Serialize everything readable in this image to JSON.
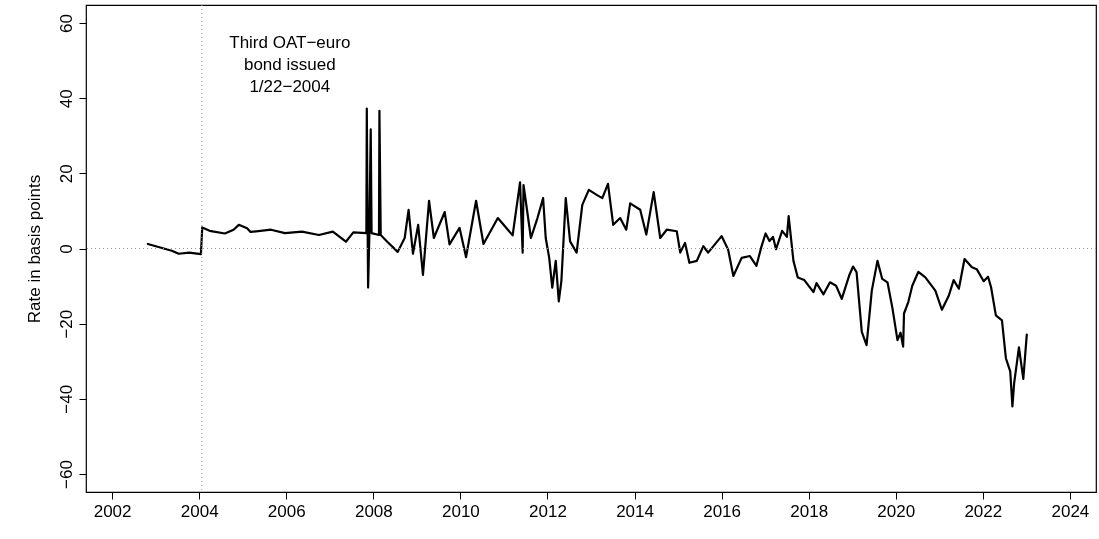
{
  "chart_data": {
    "type": "line",
    "ylabel": "Rate in basis points",
    "xlim": [
      2001.4,
      2024.6
    ],
    "xticks": [
      2002,
      2004,
      2006,
      2008,
      2010,
      2012,
      2014,
      2016,
      2018,
      2020,
      2022,
      2024
    ],
    "ylim": [
      -64.8,
      64.8
    ],
    "yticks": [
      -60,
      -40,
      -20,
      0,
      20,
      40,
      60
    ],
    "grid": false,
    "line_style": "solid",
    "ref_lines": [
      {
        "axis": "x",
        "value": 2004.06,
        "label": "Third OAT−euro\nbond issued\n1/22−2004",
        "color": "#999999",
        "line_style": "dotted"
      },
      {
        "axis": "y",
        "value": 0,
        "color": "#999999",
        "line_style": "dotted"
      }
    ],
    "series": [
      {
        "color": "#000000",
        "x": [
          2002.82,
          2003.37,
          2003.53,
          2003.77,
          2004.04,
          2004.07,
          2004.24,
          2004.59,
          2004.79,
          2004.91,
          2005.1,
          2005.18,
          2005.65,
          2005.97,
          2006.36,
          2006.75,
          2007.07,
          2007.37,
          2007.54,
          2007.84,
          2007.85,
          2007.87,
          2007.88,
          2007.91,
          2007.94,
          2007.96,
          2008.13,
          2008.14,
          2008.17,
          2008.32,
          2008.56,
          2008.72,
          2008.81,
          2008.91,
          2009.03,
          2009.14,
          2009.28,
          2009.39,
          2009.64,
          2009.75,
          2009.98,
          2010.13,
          2010.36,
          2010.53,
          2010.86,
          2011.2,
          2011.37,
          2011.43,
          2011.45,
          2011.62,
          2011.77,
          2011.9,
          2011.96,
          2012.04,
          2012.11,
          2012.19,
          2012.26,
          2012.32,
          2012.42,
          2012.52,
          2012.67,
          2012.8,
          2012.95,
          2013.14,
          2013.26,
          2013.39,
          2013.51,
          2013.67,
          2013.81,
          2013.9,
          2014.13,
          2014.27,
          2014.44,
          2014.59,
          2014.74,
          2014.97,
          2015.05,
          2015.16,
          2015.26,
          2015.43,
          2015.58,
          2015.69,
          2016.0,
          2016.15,
          2016.27,
          2016.46,
          2016.65,
          2016.8,
          2016.91,
          2017.01,
          2017.1,
          2017.18,
          2017.25,
          2017.39,
          2017.5,
          2017.54,
          2017.65,
          2017.75,
          2017.9,
          2018.11,
          2018.18,
          2018.34,
          2018.49,
          2018.63,
          2018.76,
          2018.93,
          2019.02,
          2019.1,
          2019.22,
          2019.33,
          2019.45,
          2019.58,
          2019.69,
          2019.81,
          2019.92,
          2020.04,
          2020.11,
          2020.17,
          2020.19,
          2020.29,
          2020.38,
          2020.52,
          2020.68,
          2020.91,
          2021.06,
          2021.22,
          2021.33,
          2021.45,
          2021.58,
          2021.75,
          2021.86,
          2022.02,
          2022.12,
          2022.19,
          2022.3,
          2022.44,
          2022.53,
          2022.63,
          2022.68,
          2022.72,
          2022.83,
          2022.93,
          2023.01
        ],
        "values": [
          1.2,
          -0.6,
          -1.4,
          -1.1,
          -1.5,
          5.6,
          4.7,
          4.0,
          5.0,
          6.3,
          5.4,
          4.4,
          5.0,
          4.1,
          4.5,
          3.6,
          4.5,
          1.8,
          4.3,
          4.1,
          37.2,
          4.1,
          -10.4,
          4.1,
          31.7,
          4.1,
          3.6,
          36.6,
          3.6,
          1.8,
          -0.9,
          2.8,
          10.3,
          -1.4,
          6.3,
          -7.0,
          12.7,
          2.8,
          9.7,
          1.1,
          5.5,
          -2.3,
          12.7,
          1.2,
          8.1,
          3.5,
          17.6,
          -1.1,
          16.9,
          2.8,
          8.1,
          13.4,
          2.8,
          -2.5,
          -10.4,
          -3.3,
          -14.1,
          -8.6,
          13.4,
          1.9,
          -1.1,
          11.6,
          15.6,
          14.2,
          13.4,
          17.2,
          6.3,
          8.1,
          5.0,
          12.0,
          10.3,
          3.7,
          15.0,
          2.8,
          5.0,
          4.6,
          -1.1,
          1.5,
          -3.8,
          -3.3,
          0.6,
          -1.1,
          3.3,
          -0.3,
          -7.3,
          -2.5,
          -2.0,
          -4.6,
          0.3,
          4.0,
          2.0,
          3.1,
          -0.2,
          4.7,
          3.1,
          8.6,
          -3.3,
          -7.7,
          -8.4,
          -11.6,
          -9.2,
          -12.2,
          -9.0,
          -9.9,
          -13.4,
          -7.2,
          -4.8,
          -6.3,
          -22.2,
          -25.7,
          -11.2,
          -3.3,
          -8.1,
          -9.0,
          -15.6,
          -24.4,
          -22.4,
          -26.1,
          -17.3,
          -14.2,
          -9.9,
          -6.2,
          -7.7,
          -11.2,
          -16.3,
          -12.5,
          -8.4,
          -10.7,
          -2.8,
          -5.0,
          -5.5,
          -8.7,
          -7.5,
          -10.3,
          -17.8,
          -19.1,
          -29.2,
          -32.7,
          -42.0,
          -35.8,
          -26.3,
          -34.7,
          -22.9
        ]
      }
    ]
  }
}
